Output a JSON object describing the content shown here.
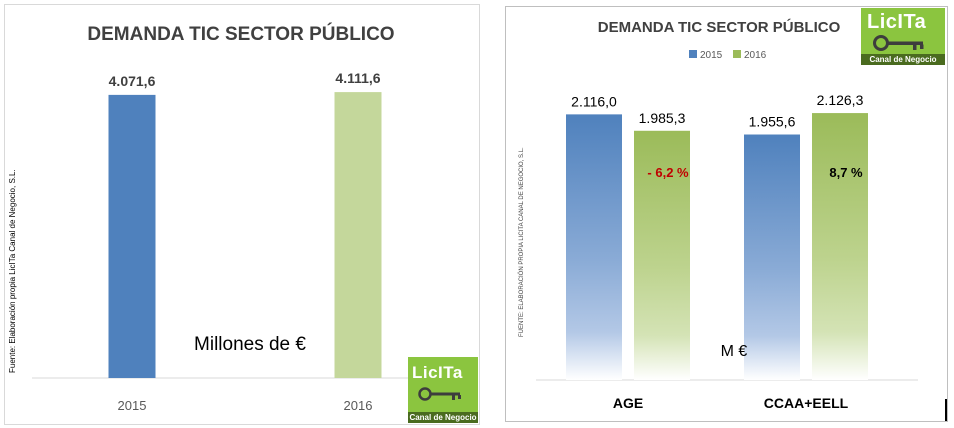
{
  "chart_data": [
    {
      "type": "bar",
      "title": "DEMANDA TIC SECTOR PÚBLICO",
      "categories": [
        "2015",
        "2016"
      ],
      "values": [
        4071.6,
        4111.6
      ],
      "value_labels": [
        "4.071,6",
        "4.111,6"
      ],
      "colors": [
        "#4f81bd",
        "#c4d79b"
      ],
      "unit_label": "Millones de €",
      "source": "Fuente: Elaboración propia LicITa Canal de Negocio, S.L.",
      "ylim": [
        0,
        4300
      ],
      "grid": false
    },
    {
      "type": "bar",
      "title": "DEMANDA TIC SECTOR PÚBLICO",
      "categories": [
        "AGE",
        "CCAA+EELL"
      ],
      "series": [
        {
          "name": "2015",
          "values": [
            2116.0,
            1955.6
          ],
          "value_labels": [
            "2.116,0",
            "1.955,6"
          ],
          "color": "#4f81bd"
        },
        {
          "name": "2016",
          "values": [
            1985.3,
            2126.3
          ],
          "value_labels": [
            "1.985,3",
            "2.126,3"
          ],
          "color": "#9bbb59"
        }
      ],
      "annotations": [
        {
          "text": "- 6,2 %",
          "category": "AGE",
          "color": "#c00000"
        },
        {
          "text": "8,7 %",
          "category": "CCAA+EELL",
          "color": "#000000"
        }
      ],
      "unit_label": "M €",
      "source": "FUENTE: ELABORACIÓN PROPIA LICITA CANAL DE NEGOCIO, S.L.",
      "ylim": [
        0,
        2350
      ],
      "legend": "top",
      "grid": false
    }
  ],
  "logos": {
    "word": "LicITa",
    "sub": "Canal de Negocio",
    "color": "#8bc53f",
    "dark": "#4a6b1f"
  }
}
